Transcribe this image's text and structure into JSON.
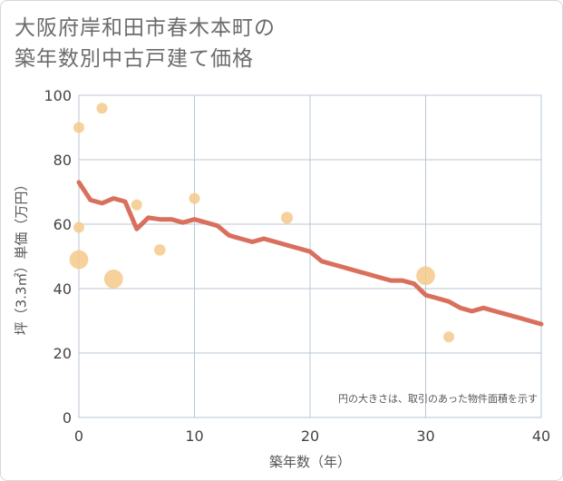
{
  "title": {
    "line1": "大阪府岸和田市春木本町の",
    "line2": "築年数別中古戸建て価格"
  },
  "colors": {
    "line": "#d9705d",
    "bubble": "#f5c98a",
    "grid": "#b8c7d6",
    "plot_background": "#ffffff"
  },
  "chart_data": {
    "type": "line",
    "xlabel": "築年数（年）",
    "ylabel": "坪（3.3㎡）単価（万円）",
    "xlim": [
      0,
      40
    ],
    "ylim": [
      0,
      100
    ],
    "x_ticks": [
      "0",
      "10",
      "20",
      "30",
      "40"
    ],
    "y_ticks": [
      "0",
      "20",
      "40",
      "60",
      "80",
      "100"
    ],
    "grid": true,
    "note": "円の大きさは、取引のあった物件面積を示す",
    "series": [
      {
        "points": [
          [
            0,
            73
          ],
          [
            1,
            67.5
          ],
          [
            2,
            66.5
          ],
          [
            3,
            68
          ],
          [
            4,
            67
          ],
          [
            5,
            58.5
          ],
          [
            6,
            62
          ],
          [
            7,
            61.5
          ],
          [
            8,
            61.5
          ],
          [
            9,
            60.5
          ],
          [
            10,
            61.5
          ],
          [
            11,
            60.5
          ],
          [
            12,
            59.5
          ],
          [
            13,
            56.5
          ],
          [
            14,
            55.5
          ],
          [
            15,
            54.5
          ],
          [
            16,
            55.5
          ],
          [
            17,
            54.5
          ],
          [
            18,
            53.5
          ],
          [
            19,
            52.5
          ],
          [
            20,
            51.5
          ],
          [
            21,
            48.5
          ],
          [
            22,
            47.5
          ],
          [
            23,
            46.5
          ],
          [
            24,
            45.5
          ],
          [
            25,
            44.5
          ],
          [
            26,
            43.5
          ],
          [
            27,
            42.5
          ],
          [
            28,
            42.5
          ],
          [
            29,
            41.5
          ],
          [
            30,
            38
          ],
          [
            31,
            37
          ],
          [
            32,
            36
          ],
          [
            33,
            34
          ],
          [
            34,
            33
          ],
          [
            35,
            34
          ],
          [
            36,
            33
          ],
          [
            37,
            32
          ],
          [
            38,
            31
          ],
          [
            39,
            30
          ],
          [
            40,
            29
          ]
        ]
      }
    ],
    "bubbles": [
      {
        "x": 0,
        "y": 90,
        "size": 1
      },
      {
        "x": 0,
        "y": 59,
        "size": 1
      },
      {
        "x": 0,
        "y": 49,
        "size": 3
      },
      {
        "x": 2,
        "y": 96,
        "size": 1
      },
      {
        "x": 3,
        "y": 43,
        "size": 3
      },
      {
        "x": 5,
        "y": 66,
        "size": 1
      },
      {
        "x": 7,
        "y": 52,
        "size": 1.1
      },
      {
        "x": 10,
        "y": 68,
        "size": 1
      },
      {
        "x": 18,
        "y": 62,
        "size": 1.2
      },
      {
        "x": 30,
        "y": 44,
        "size": 3
      },
      {
        "x": 32,
        "y": 25,
        "size": 1
      }
    ]
  }
}
